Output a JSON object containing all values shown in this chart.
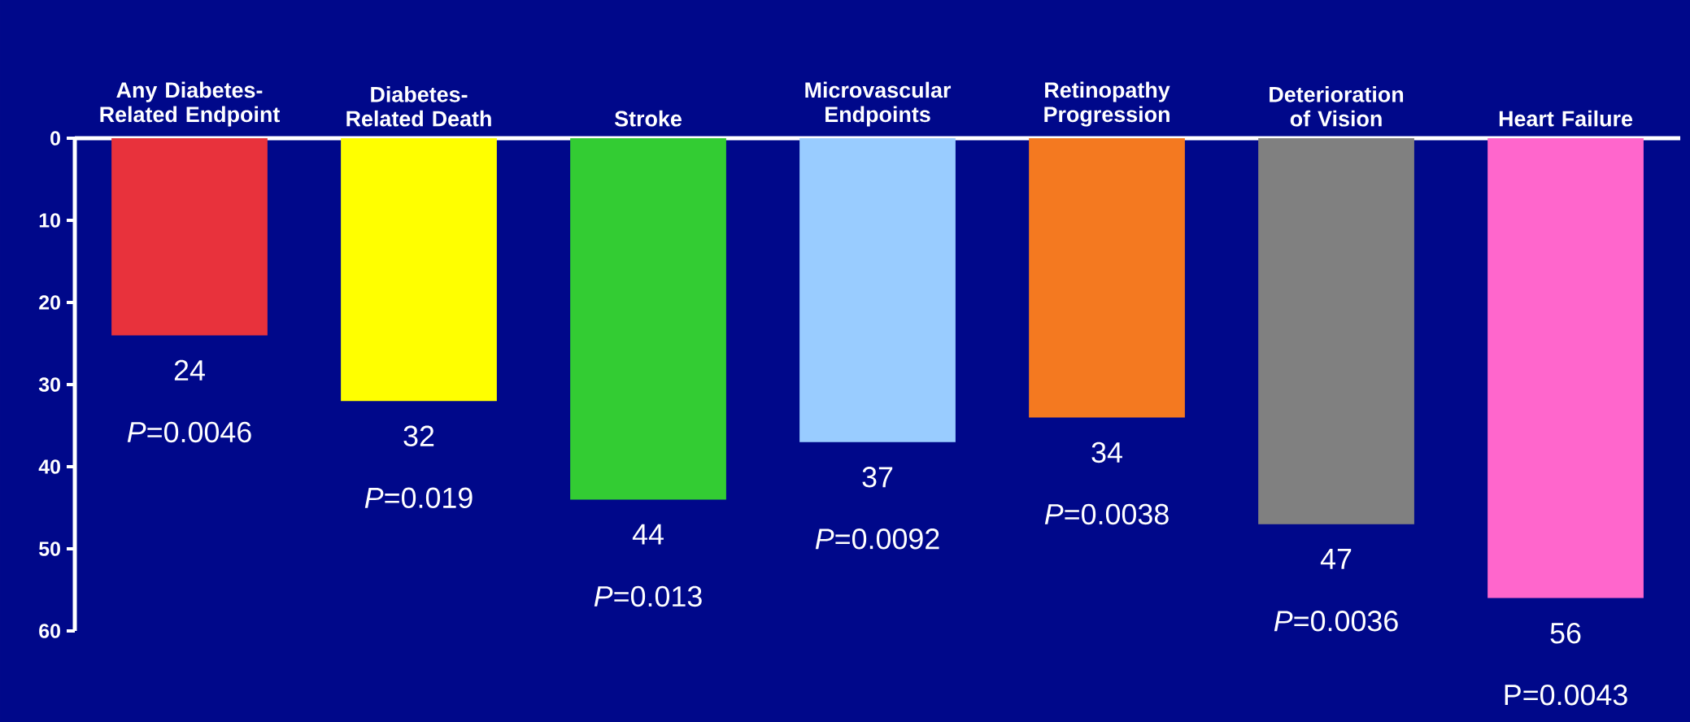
{
  "chart_data": {
    "type": "bar",
    "categories": [
      "Any Diabetes-Related Endpoint",
      "Diabetes-Related Death",
      "Stroke",
      "Microvascular Endpoints",
      "Retinopathy Progression",
      "Deterioration of Vision",
      "Heart Failure"
    ],
    "values": [
      24,
      32,
      44,
      37,
      34,
      47,
      56
    ],
    "colors": [
      "#e8323c",
      "#ffff00",
      "#33cc33",
      "#99ccff",
      "#f47920",
      "#808080",
      "#ff66cc"
    ],
    "ylim": [
      60,
      0
    ],
    "yticks": [
      0,
      10,
      20,
      30,
      40,
      50,
      60
    ],
    "data_labels": true,
    "annotations": [
      {
        "text": "*P*=0.0046",
        "x": "Any Diabetes-Related Endpoint",
        "y": 24
      },
      {
        "text": "*P*=0.019",
        "x": "Diabetes-Related Death",
        "y": 32
      },
      {
        "text": "*P*=0.013",
        "x": "Stroke",
        "y": 44
      },
      {
        "text": "*P*=0.0092",
        "x": "Microvascular Endpoints",
        "y": 37
      },
      {
        "text": "*P*=0.0038",
        "x": "Retinopathy Progression",
        "y": 34
      },
      {
        "text": "*P*=0.0036",
        "x": "Deterioration of Vision",
        "y": 47
      },
      {
        "text": "P=0.0043",
        "x": "Heart Failure",
        "y": 56
      }
    ]
  }
}
